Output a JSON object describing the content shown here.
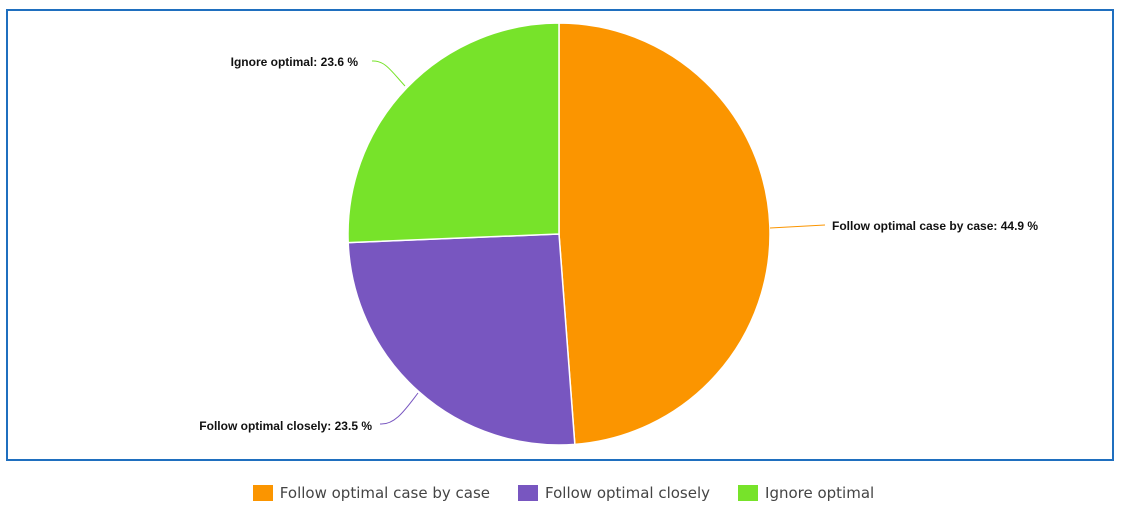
{
  "chart_data": {
    "type": "pie",
    "start": "12 o'clock, clockwise",
    "series": [
      {
        "name": "Follow optimal case by case",
        "value": 44.9,
        "label": "Follow optimal case by case: 44.9 %",
        "color": "#fb9500"
      },
      {
        "name": "Follow optimal closely",
        "value": 23.5,
        "label": "Follow optimal closely: 23.5 %",
        "color": "#7856c0"
      },
      {
        "name": "Ignore optimal",
        "value": 23.6,
        "label": "Ignore optimal: 23.6 %",
        "color": "#77e32a"
      }
    ],
    "legend_position": "bottom",
    "border_color": "#1f6fbf"
  }
}
